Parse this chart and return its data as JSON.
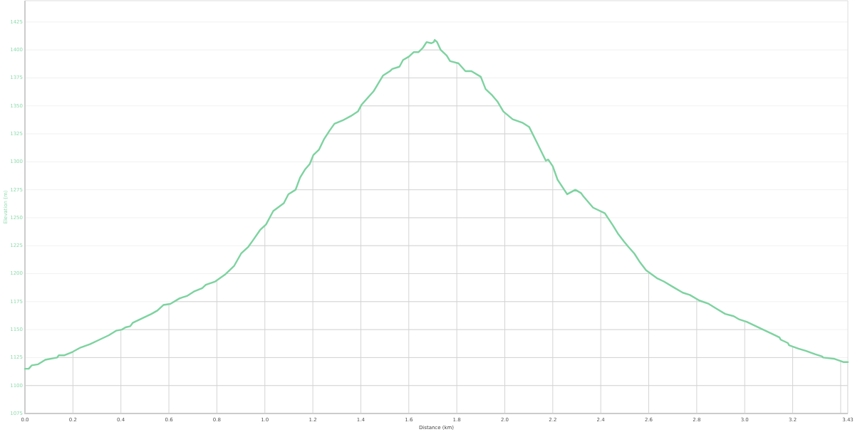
{
  "chart_data": {
    "type": "line",
    "xlabel": "Distance (km)",
    "ylabel": "Elevation (m)",
    "xlim": [
      0,
      3.43
    ],
    "ylim": [
      1075,
      1444
    ],
    "xticks": [
      {
        "value": 0,
        "label": "0.0"
      },
      0.2,
      0.4,
      0.6,
      0.8,
      {
        "value": 1,
        "label": "1.0"
      },
      1.2,
      1.4,
      1.6,
      1.8,
      {
        "value": 2,
        "label": "2.0"
      },
      2.2,
      2.4,
      2.6,
      2.8,
      {
        "value": 3,
        "label": "3.0"
      },
      3.2,
      {
        "value": 3.4,
        "label": null
      },
      3.43
    ],
    "yticks": [
      1075,
      1100,
      1125,
      1150,
      1175,
      1200,
      1225,
      1250,
      1275,
      1300,
      1325,
      1350,
      1375,
      1400,
      1425
    ],
    "grid": true,
    "x": [
      0,
      0.016,
      0.028,
      0.055,
      0.085,
      0.134,
      0.141,
      0.163,
      0.198,
      0.232,
      0.271,
      0.311,
      0.35,
      0.38,
      0.404,
      0.419,
      0.439,
      0.449,
      0.488,
      0.527,
      0.552,
      0.577,
      0.606,
      0.645,
      0.675,
      0.704,
      0.739,
      0.754,
      0.793,
      0.833,
      0.872,
      0.901,
      0.931,
      0.951,
      0.98,
      1.005,
      1.025,
      1.035,
      1.079,
      1.098,
      1.128,
      1.147,
      1.167,
      1.187,
      1.202,
      1.226,
      1.246,
      1.27,
      1.29,
      1.324,
      1.359,
      1.388,
      1.403,
      1.453,
      1.492,
      1.521,
      1.531,
      1.561,
      1.576,
      1.6,
      1.62,
      1.64,
      1.659,
      1.674,
      1.694,
      1.704,
      1.708,
      1.718,
      1.733,
      1.758,
      1.772,
      1.807,
      1.836,
      1.861,
      1.9,
      1.92,
      1.945,
      1.969,
      1.994,
      2.033,
      2.073,
      2.102,
      2.132,
      2.171,
      2.181,
      2.2,
      2.22,
      2.26,
      2.294,
      2.318,
      2.328,
      2.368,
      2.417,
      2.451,
      2.471,
      2.496,
      2.515,
      2.54,
      2.564,
      2.589,
      2.634,
      2.663,
      2.702,
      2.742,
      2.771,
      2.811,
      2.85,
      2.88,
      2.919,
      2.954,
      2.978,
      3.008,
      3.047,
      3.086,
      3.116,
      3.145,
      3.15,
      3.18,
      3.185,
      3.224,
      3.254,
      3.293,
      3.323,
      3.327,
      3.371,
      3.411,
      3.43
    ],
    "series": [
      {
        "color": "#7dd3a0",
        "values": [
          1115,
          1115,
          1118,
          1119,
          1123,
          1125,
          1127,
          1127,
          1130,
          1134,
          1137,
          1141,
          1145,
          1149,
          1150,
          1152,
          1153,
          1156,
          1160,
          1164,
          1167,
          1172,
          1173,
          1178,
          1180,
          1184,
          1187,
          1190,
          1193,
          1199,
          1207,
          1218,
          1224,
          1230,
          1239,
          1244,
          1252,
          1256,
          1263,
          1271,
          1275,
          1286,
          1293,
          1298,
          1306,
          1311,
          1320,
          1328,
          1334,
          1337,
          1341,
          1345,
          1351,
          1363,
          1377,
          1381,
          1383,
          1385,
          1391,
          1394,
          1398,
          1398,
          1402,
          1407,
          1406,
          1407,
          1409,
          1407,
          1400,
          1395,
          1390,
          1388,
          1381,
          1381,
          1376,
          1365,
          1360,
          1354,
          1345,
          1338,
          1335,
          1331,
          1318,
          1301,
          1302,
          1296,
          1284,
          1271,
          1275,
          1272,
          1269,
          1259,
          1254,
          1243,
          1236,
          1229,
          1224,
          1218,
          1210,
          1203,
          1196,
          1193,
          1188,
          1183,
          1181,
          1176,
          1173,
          1169,
          1164,
          1162,
          1159,
          1157,
          1153,
          1149,
          1146,
          1143,
          1141,
          1138,
          1136,
          1133,
          1131,
          1128,
          1126,
          1125,
          1124,
          1121,
          1121
        ]
      }
    ]
  }
}
